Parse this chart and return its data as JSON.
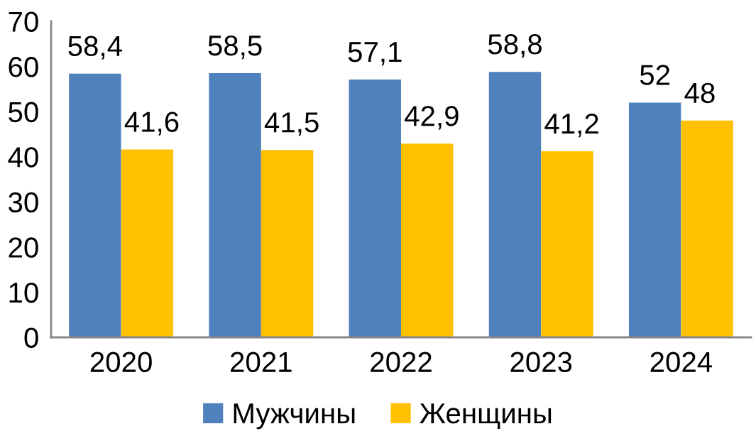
{
  "chart_data": {
    "type": "bar",
    "categories": [
      "2020",
      "2021",
      "2022",
      "2023",
      "2024"
    ],
    "series": [
      {
        "name": "Мужчины",
        "color": "#4f81bd",
        "values": [
          58.4,
          58.5,
          57.1,
          58.8,
          52
        ],
        "value_labels": [
          "58,4",
          "58,5",
          "57,1",
          "58,8",
          "52"
        ]
      },
      {
        "name": "Женщины",
        "color": "#ffc000",
        "values": [
          41.6,
          41.5,
          42.9,
          41.2,
          48
        ],
        "value_labels": [
          "41,6",
          "41,5",
          "42,9",
          "41,2",
          "48"
        ]
      }
    ],
    "ylim": [
      0,
      70
    ],
    "yticks": [
      0,
      10,
      20,
      30,
      40,
      50,
      60,
      70
    ],
    "grid": false,
    "legend": "bottom"
  }
}
